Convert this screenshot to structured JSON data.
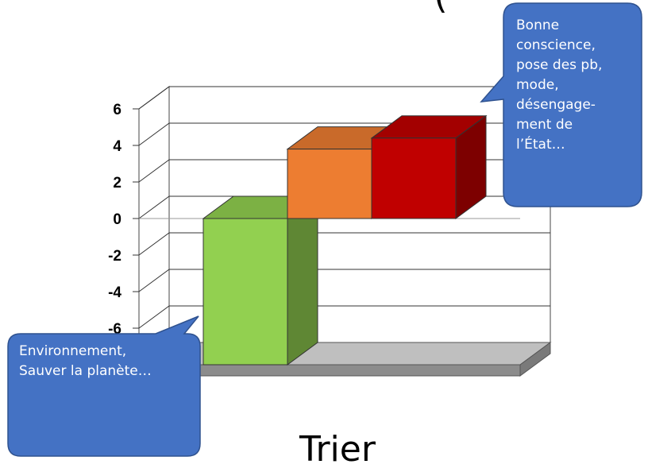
{
  "chart_data": {
    "type": "bar",
    "style": "3d",
    "categories": [
      "",
      "",
      ""
    ],
    "values": [
      -8,
      3.8,
      4.4
    ],
    "colors": [
      "#92d050",
      "#ed7d31",
      "#c00000"
    ],
    "yticks": [
      6,
      4,
      2,
      0,
      -2,
      -4,
      -6
    ],
    "ylim": [
      -8,
      6
    ],
    "grid": true,
    "title": "",
    "xlabel": "",
    "ylabel": ""
  },
  "callouts": {
    "right_text": "Bonne conscience, pose des pb, mode, désengage-ment de l’État…",
    "right_lines": [
      "Bonne",
      "conscience,",
      "pose des pb,",
      "mode,",
      "désengage-",
      "ment de",
      "l’État…"
    ],
    "left_lines": [
      "Environnement,",
      "Sauver la planète…"
    ],
    "bubble_color": "#4472c4",
    "bubble_border": "#2f528f"
  },
  "bottom_label": "Trier",
  "top_fragment": "("
}
